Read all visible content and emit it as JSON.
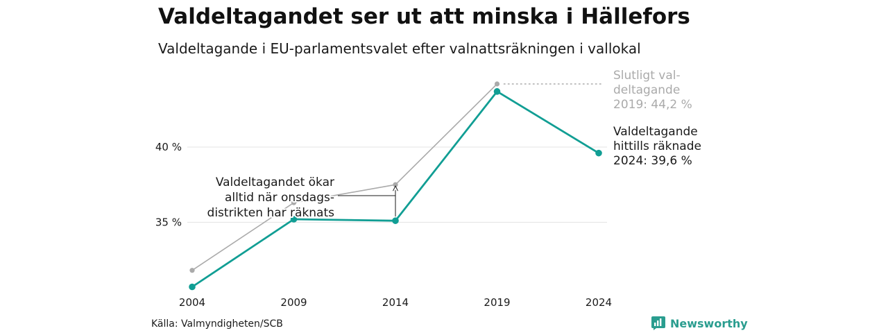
{
  "title": "Valdeltagandet ser ut att minska i Hällefors",
  "subtitle": "Valdeltagande i EU-parlamentsvalet efter valnattsräkningen i vallokal",
  "source": "Källa: Valmyndigheten/SCB",
  "brand": {
    "name": "Newsworthy",
    "color": "#2a9d8f"
  },
  "chart_data": {
    "type": "line",
    "title": "Valdeltagandet ser ut att minska i Hällefors",
    "subtitle": "Valdeltagande i EU-parlamentsvalet efter valnattsräkningen i vallokal",
    "x": [
      2004,
      2009,
      2014,
      2019,
      2024
    ],
    "x_tick_labels": [
      "2004",
      "2009",
      "2014",
      "2019",
      "2024"
    ],
    "y_ticks": [
      35,
      40
    ],
    "y_tick_labels": [
      "35 %",
      "40 %"
    ],
    "ylim": [
      30.4,
      45.4
    ],
    "grid": true,
    "series": [
      {
        "key": "final",
        "color": "#aaaaaa",
        "values": [
          31.8,
          36.3,
          37.5,
          44.2,
          null
        ]
      },
      {
        "key": "election_night",
        "color": "#119e94",
        "values": [
          30.7,
          35.2,
          35.1,
          43.7,
          39.6
        ]
      }
    ],
    "annotations": {
      "final": [
        "Slutligt val-",
        "deltagande",
        "2019: 44,2 %"
      ],
      "night": [
        "Valdeltagande",
        "hittills räknade",
        "2024: 39,6 %"
      ],
      "increase": [
        "Valdeltagandet ökar",
        "alltid när onsdags-",
        "distrikten har räknats"
      ]
    }
  }
}
